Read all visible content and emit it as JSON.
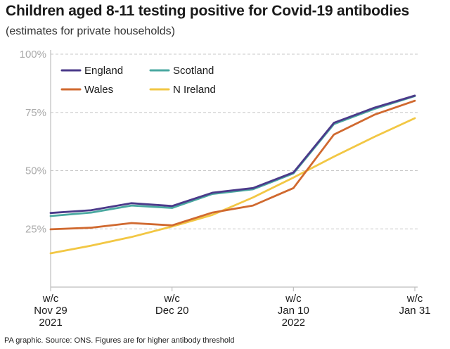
{
  "header": {
    "title": "Children aged 8-11 testing positive for Covid-19 antibodies",
    "subtitle": "(estimates for private households)"
  },
  "footer": {
    "note": "PA graphic. Source: ONS. Figures are for higher antibody threshold"
  },
  "chart_data": {
    "type": "line",
    "title": "Children aged 8-11 testing positive for Covid-19 antibodies",
    "subtitle": "(estimates for private households)",
    "xlabel": "",
    "ylabel": "",
    "x": [
      "2021-11-29",
      "2021-12-06",
      "2021-12-13",
      "2021-12-20",
      "2021-12-27",
      "2022-01-03",
      "2022-01-10",
      "2022-01-17",
      "2022-01-24",
      "2022-01-31"
    ],
    "x_tick_labels": [
      {
        "x": "2021-11-29",
        "lines": [
          "w/c",
          "Nov 29",
          "2021"
        ]
      },
      {
        "x": "2021-12-20",
        "lines": [
          "w/c",
          "Dec 20"
        ]
      },
      {
        "x": "2022-01-10",
        "lines": [
          "w/c",
          "Jan 10",
          "2022"
        ]
      },
      {
        "x": "2022-01-31",
        "lines": [
          "w/c",
          "Jan 31"
        ]
      }
    ],
    "y_ticks": [
      25,
      50,
      75,
      100
    ],
    "y_tick_labels": [
      "25%",
      "50%",
      "75%",
      "100%"
    ],
    "ylim": [
      0,
      100
    ],
    "grid": "horizontal dashed",
    "legend": "top-left",
    "series": [
      {
        "name": "England",
        "color": "#4b3a8a",
        "values": [
          31.8,
          33,
          36,
          34.8,
          40.5,
          42.5,
          49.2,
          70.5,
          77,
          82.2
        ]
      },
      {
        "name": "Scotland",
        "color": "#4aa8a0",
        "values": [
          30.5,
          32,
          35,
          34,
          40,
          42,
          48.8,
          70,
          76.5,
          82
        ]
      },
      {
        "name": "Wales",
        "color": "#d0692f",
        "values": [
          24.8,
          25.5,
          27.5,
          26.5,
          32,
          35,
          42.5,
          65.5,
          74,
          80
        ]
      },
      {
        "name": "N Ireland",
        "color": "#f2c744",
        "values": [
          14.5,
          17.8,
          21.5,
          26,
          31,
          38.5,
          47,
          56,
          64.5,
          72.5
        ]
      }
    ]
  }
}
